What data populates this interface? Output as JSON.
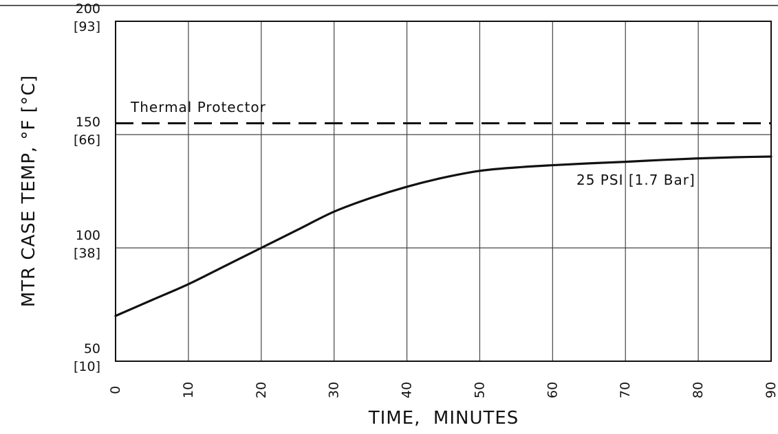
{
  "chart_data": {
    "type": "line",
    "xlabel": "TIME,  MINUTES",
    "ylabel": "MTR CASE TEMP, °F [°C]",
    "xlim": [
      0,
      90
    ],
    "ylim": [
      50,
      200
    ],
    "x_ticks": [
      {
        "value": 0,
        "label": "0"
      },
      {
        "value": 10,
        "label": "10"
      },
      {
        "value": 20,
        "label": "20"
      },
      {
        "value": 30,
        "label": "30"
      },
      {
        "value": 40,
        "label": "40"
      },
      {
        "value": 50,
        "label": "50"
      },
      {
        "value": 60,
        "label": "60"
      },
      {
        "value": 70,
        "label": "70"
      },
      {
        "value": 80,
        "label": "80"
      },
      {
        "value": 90,
        "label": "90"
      }
    ],
    "y_ticks": [
      {
        "value": 50,
        "label_f": "50",
        "label_c": "[10]"
      },
      {
        "value": 100,
        "label_f": "100",
        "label_c": "[38]"
      },
      {
        "value": 150,
        "label_f": "150",
        "label_c": "[66]"
      },
      {
        "value": 200,
        "label_f": "200",
        "label_c": "[93]"
      }
    ],
    "grid": true,
    "series": [
      {
        "name": "25 PSI [1.7 Bar]",
        "x": [
          0,
          5,
          10,
          15,
          20,
          25,
          30,
          35,
          40,
          45,
          50,
          55,
          60,
          65,
          70,
          75,
          80,
          85,
          90
        ],
        "y": [
          70,
          77,
          84,
          92,
          100,
          108,
          116,
          122,
          127,
          131,
          134,
          135.5,
          136.5,
          137.3,
          138,
          138.8,
          139.5,
          140,
          140.3
        ]
      }
    ],
    "annotations": [
      {
        "text": "Thermal Protector",
        "y": 155,
        "style": "dashed-line"
      }
    ],
    "colors": {
      "line": "#111111",
      "grid": "#444444"
    }
  }
}
